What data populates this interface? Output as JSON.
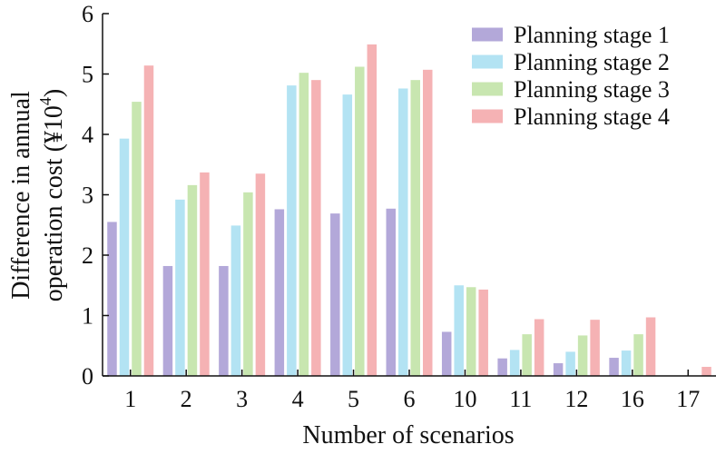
{
  "chart_data": {
    "type": "bar",
    "xlabel": "Number of scenarios",
    "ylabel_line1": "Difference in annual",
    "ylabel_line2_prefix": "operation cost (¥10",
    "ylabel_line2_sup": "4",
    "ylabel_line2_suffix": ")",
    "categories": [
      "1",
      "2",
      "3",
      "4",
      "5",
      "6",
      "10",
      "11",
      "12",
      "16",
      "17"
    ],
    "ylim": [
      0,
      6
    ],
    "yticks": [
      "0",
      "1",
      "2",
      "3",
      "4",
      "5",
      "6"
    ],
    "legend_position": "top-right",
    "series": [
      {
        "name": "Planning stage 1",
        "color": "#b3a8d9",
        "values": [
          2.55,
          1.82,
          1.82,
          2.76,
          2.69,
          2.77,
          0.73,
          0.29,
          0.21,
          0.3,
          0.0
        ]
      },
      {
        "name": "Planning stage 2",
        "color": "#b3e3f3",
        "values": [
          3.93,
          2.92,
          2.49,
          4.81,
          4.66,
          4.76,
          1.5,
          0.43,
          0.4,
          0.42,
          0.0
        ]
      },
      {
        "name": "Planning stage 3",
        "color": "#c8e6b0",
        "values": [
          4.54,
          3.16,
          3.04,
          5.02,
          5.12,
          4.9,
          1.47,
          0.69,
          0.67,
          0.69,
          0.0
        ]
      },
      {
        "name": "Planning stage 4",
        "color": "#f5b2b4",
        "values": [
          5.14,
          3.37,
          3.35,
          4.9,
          5.49,
          5.07,
          1.43,
          0.94,
          0.93,
          0.97,
          0.15
        ]
      }
    ]
  }
}
